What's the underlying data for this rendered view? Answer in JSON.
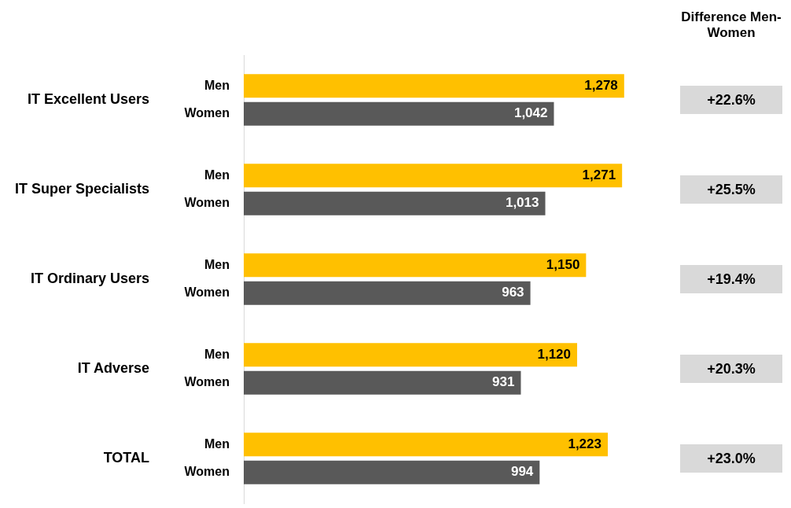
{
  "chart_data": {
    "type": "bar",
    "orientation": "horizontal",
    "categories": [
      "IT Excellent Users",
      "IT Super Specialists",
      "IT Ordinary Users",
      "IT Adverse",
      "TOTAL"
    ],
    "series": [
      {
        "name": "Men",
        "color": "#ffc000",
        "values": [
          1278,
          1271,
          1150,
          1120,
          1223
        ],
        "value_labels": [
          "1,278",
          "1,271",
          "1,150",
          "1,120",
          "1,223"
        ]
      },
      {
        "name": "Women",
        "color": "#595959",
        "values": [
          1042,
          1013,
          963,
          931,
          994
        ],
        "value_labels": [
          "1,042",
          "1,013",
          "963",
          "931",
          "994"
        ]
      }
    ],
    "legend": false,
    "annotations": [
      "Difference Men-Women",
      "+22.6%",
      "+25.5%",
      "+19.4%",
      "+20.3%",
      "+23.0%"
    ]
  }
}
